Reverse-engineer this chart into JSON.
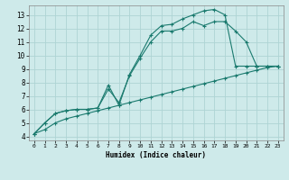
{
  "bg_color": "#ceeaea",
  "grid_color": "#aed4d4",
  "line_color": "#1a7a6e",
  "xlabel": "Humidex (Indice chaleur)",
  "xlim": [
    -0.5,
    23.5
  ],
  "ylim": [
    3.7,
    13.7
  ],
  "xticks": [
    0,
    1,
    2,
    3,
    4,
    5,
    6,
    7,
    8,
    9,
    10,
    11,
    12,
    13,
    14,
    15,
    16,
    17,
    18,
    19,
    20,
    21,
    22,
    23
  ],
  "yticks": [
    4,
    5,
    6,
    7,
    8,
    9,
    10,
    11,
    12,
    13
  ],
  "series1_x": [
    0,
    1,
    2,
    3,
    4,
    5,
    6,
    7,
    8,
    9,
    10,
    11,
    12,
    13,
    14,
    15,
    16,
    17,
    18,
    19,
    20,
    21,
    22,
    23
  ],
  "series1_y": [
    4.2,
    5.0,
    5.7,
    5.9,
    6.0,
    6.0,
    6.1,
    7.8,
    6.3,
    8.6,
    10.0,
    11.5,
    12.2,
    12.3,
    12.7,
    13.0,
    13.3,
    13.4,
    13.0,
    9.2,
    9.2,
    9.2,
    9.2,
    9.2
  ],
  "series2_x": [
    0,
    1,
    2,
    3,
    4,
    5,
    6,
    7,
    8,
    9,
    10,
    11,
    12,
    13,
    14,
    15,
    16,
    17,
    18,
    19,
    20,
    21,
    22,
    23
  ],
  "series2_y": [
    4.2,
    5.0,
    5.7,
    5.9,
    6.0,
    6.0,
    6.1,
    7.5,
    6.5,
    8.5,
    9.8,
    11.0,
    11.8,
    11.8,
    12.0,
    12.5,
    12.2,
    12.5,
    12.5,
    11.8,
    11.0,
    9.2,
    9.2,
    9.2
  ],
  "series3_x": [
    0,
    1,
    2,
    3,
    4,
    5,
    6,
    7,
    8,
    9,
    10,
    11,
    12,
    13,
    14,
    15,
    16,
    17,
    18,
    19,
    20,
    21,
    22,
    23
  ],
  "series3_y": [
    4.2,
    4.5,
    5.0,
    5.3,
    5.5,
    5.7,
    5.9,
    6.1,
    6.3,
    6.5,
    6.7,
    6.9,
    7.1,
    7.3,
    7.5,
    7.7,
    7.9,
    8.1,
    8.3,
    8.5,
    8.7,
    8.9,
    9.1,
    9.2
  ]
}
